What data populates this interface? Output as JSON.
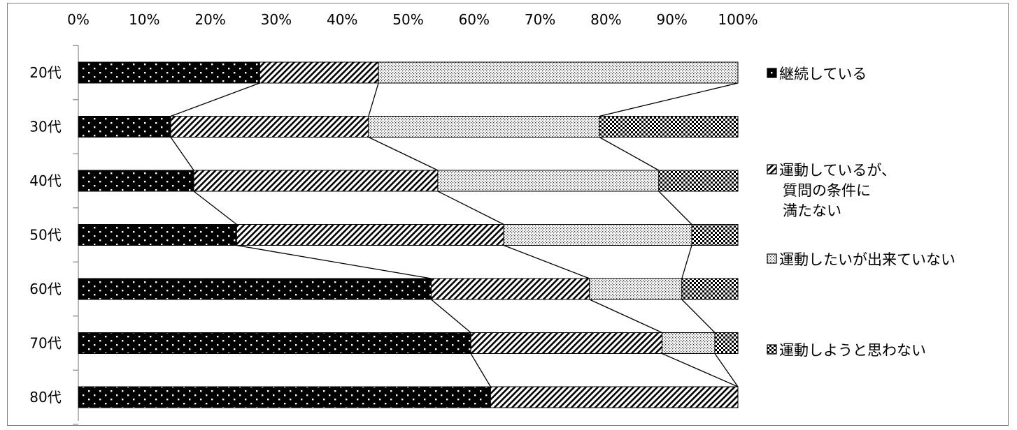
{
  "chart_data": {
    "type": "bar",
    "orientation": "horizontal",
    "stacked": "percent",
    "categories": [
      "20代",
      "30代",
      "40代",
      "50代",
      "60代",
      "70代",
      "80代"
    ],
    "series": [
      {
        "name": "継続している",
        "pattern": "dots-on-black",
        "values": [
          27.5,
          14,
          17.5,
          24,
          53.5,
          59.5,
          62.5
        ]
      },
      {
        "name_lines": [
          "運動しているが、",
          "質問の条件に",
          "満たない"
        ],
        "pattern": "diagonal-hatch",
        "values": [
          18,
          30,
          37,
          40.5,
          24,
          29,
          37.5
        ]
      },
      {
        "name": "運動したいが出来ていない",
        "pattern": "fine-dots",
        "values": [
          54.5,
          35,
          33.5,
          28.5,
          14,
          8,
          0
        ]
      },
      {
        "name": "運動しようと思わない",
        "pattern": "checker",
        "values": [
          0,
          21,
          12,
          7,
          8.5,
          3.5,
          0
        ]
      }
    ],
    "x_ticks": [
      "0%",
      "10%",
      "20%",
      "30%",
      "40%",
      "50%",
      "60%",
      "70%",
      "80%",
      "90%",
      "100%"
    ],
    "xlim": [
      0,
      100
    ],
    "axis_position": "top",
    "series_lines": true,
    "grid": false,
    "legend_position": "right"
  }
}
